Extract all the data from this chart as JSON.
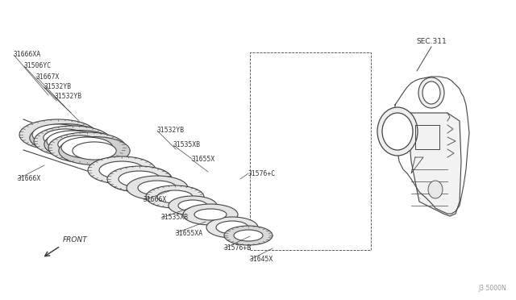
{
  "bg_color": "#ffffff",
  "line_color": "#444444",
  "text_color": "#333333",
  "fig_width": 6.4,
  "fig_height": 3.72,
  "dpi": 100,
  "watermark": "J3 5000N",
  "sec_label": "SEC.311",
  "front_label": "FRONT"
}
